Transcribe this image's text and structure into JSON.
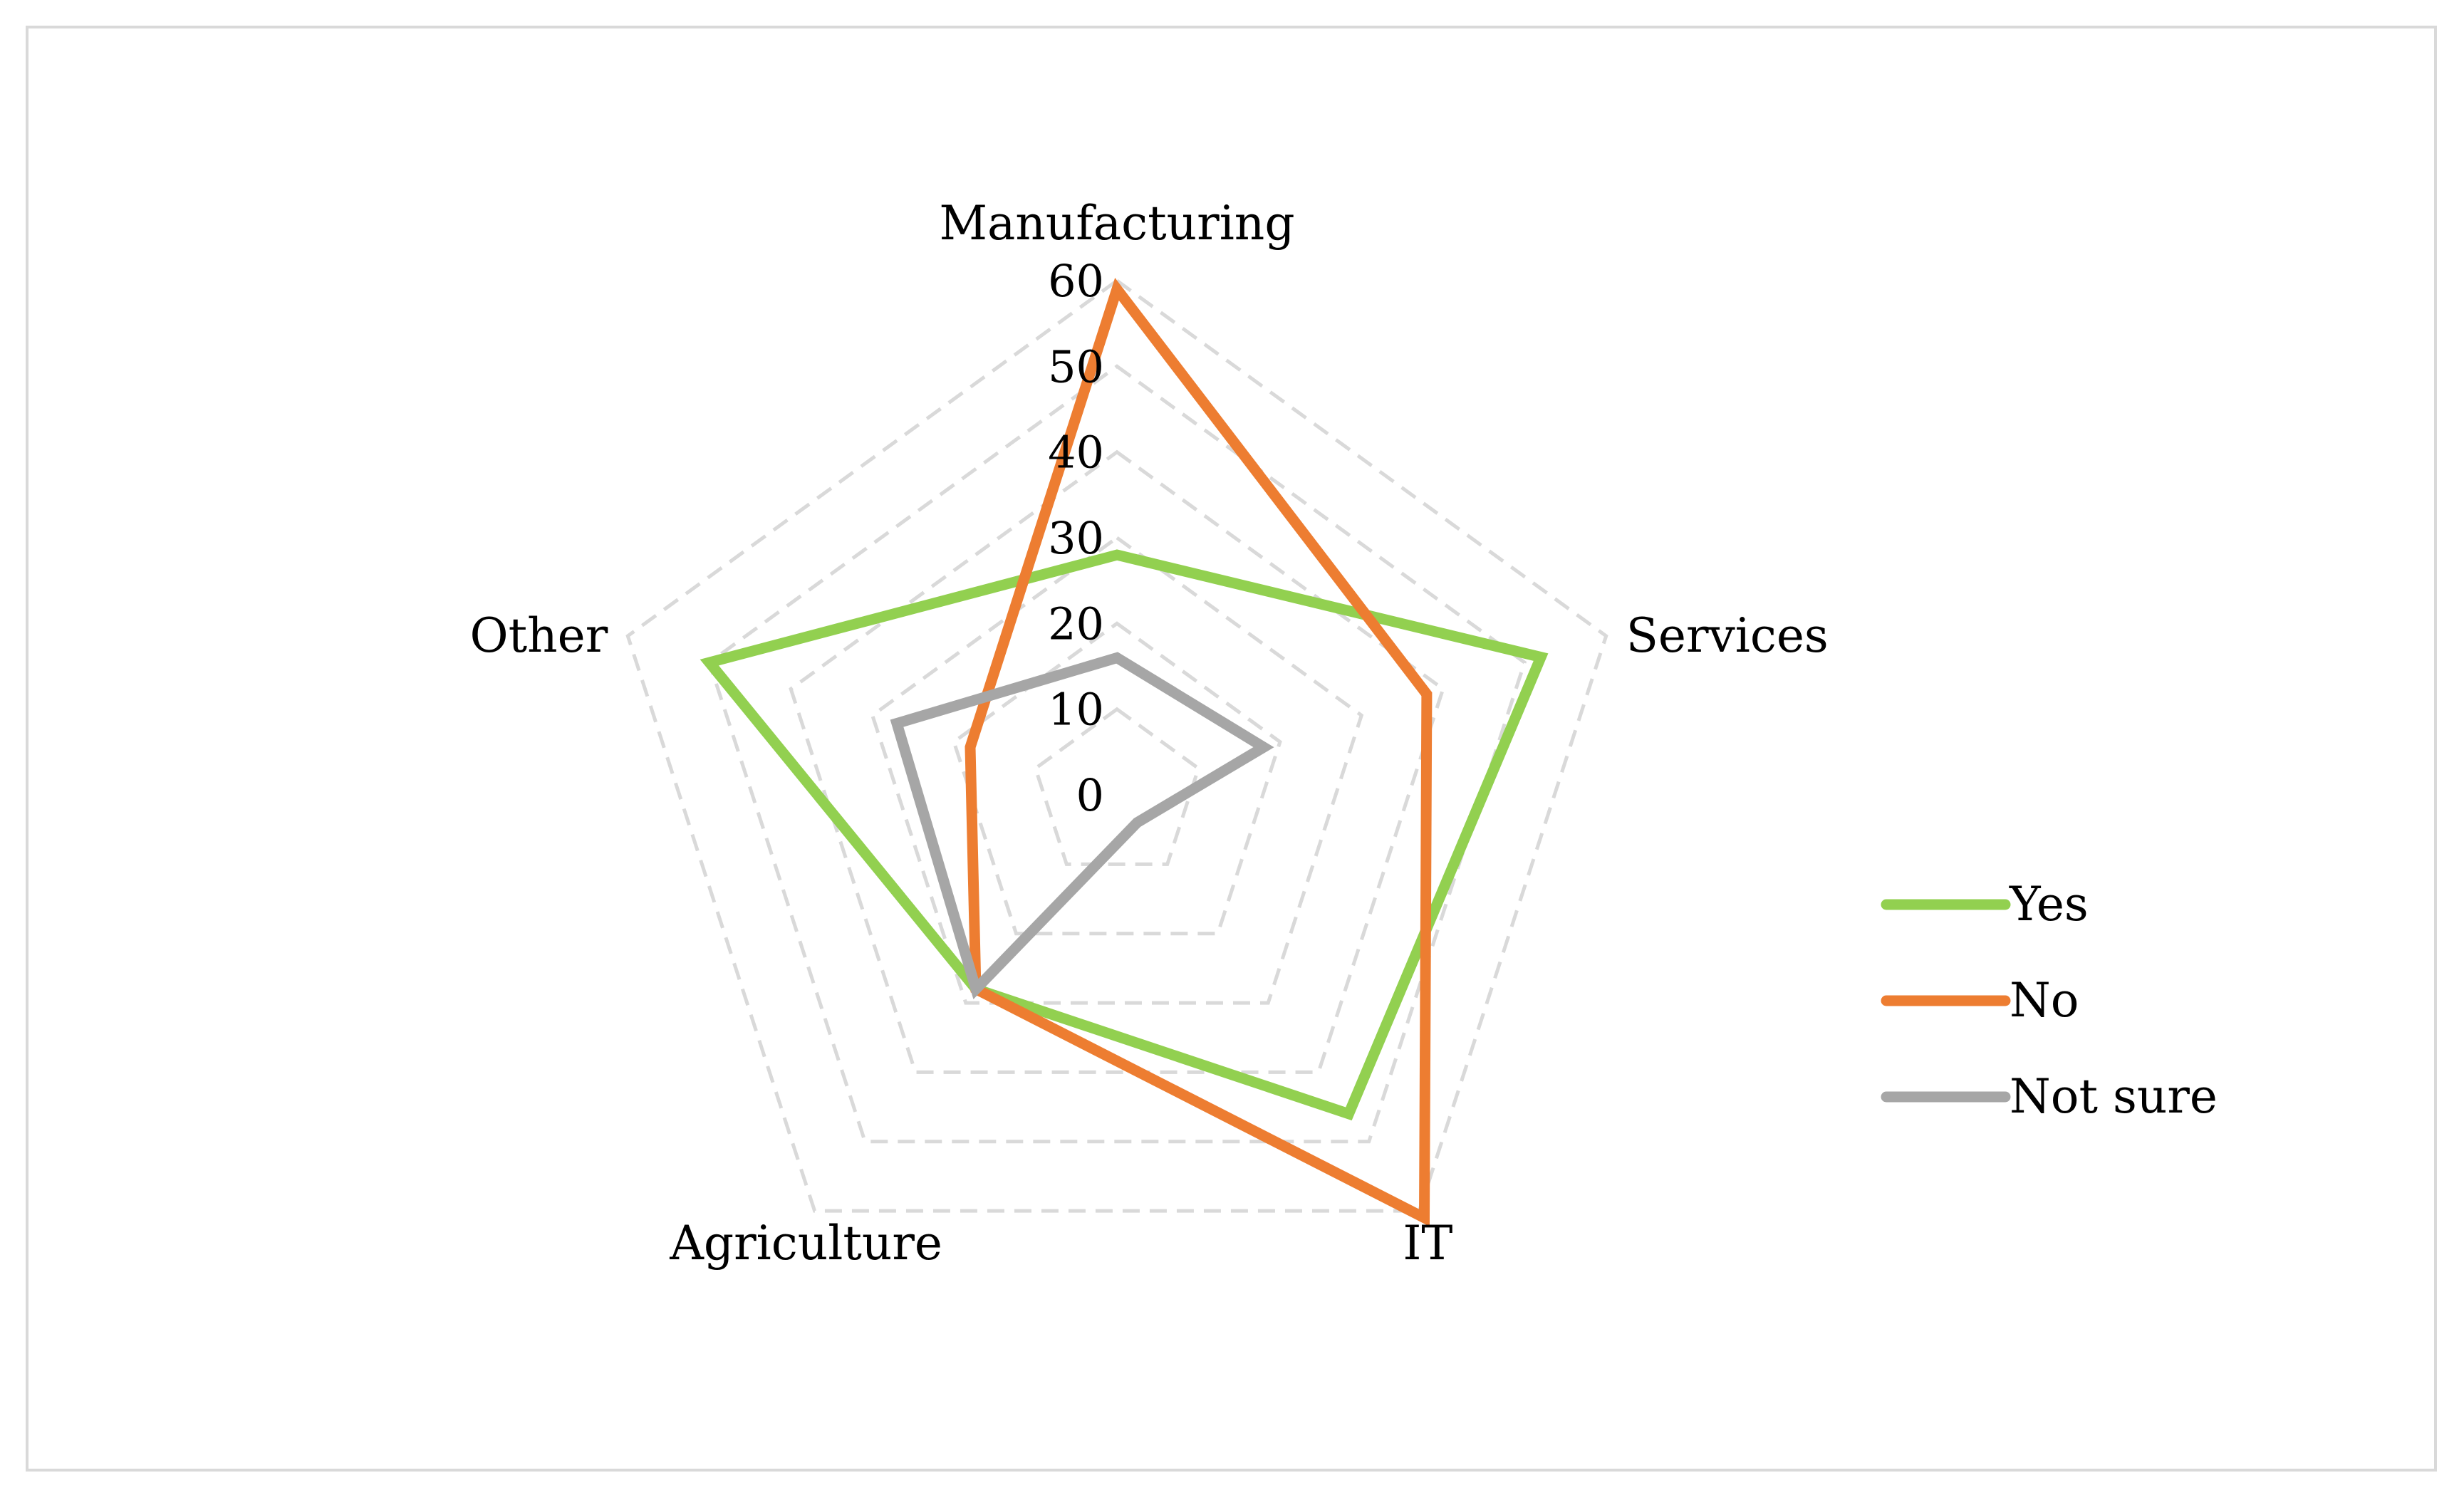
{
  "chart_data": {
    "type": "radar",
    "categories": [
      "Manufacturing",
      "Services",
      "IT",
      "Agriculture",
      "Other"
    ],
    "radial_ticks": [
      "0",
      "10",
      "20",
      "30",
      "40",
      "50",
      "60"
    ],
    "rlim": [
      0,
      60
    ],
    "grid": true,
    "legend_position": "right",
    "series": [
      {
        "name": "Yes",
        "color": "#92d050",
        "values": [
          28,
          52,
          46,
          28,
          50
        ]
      },
      {
        "name": "No",
        "color": "#ed7d31",
        "values": [
          59,
          38,
          61,
          28,
          18
        ]
      },
      {
        "name": "Not sure",
        "color": "#a6a6a6",
        "values": [
          16,
          18,
          4,
          28,
          27
        ]
      }
    ]
  }
}
